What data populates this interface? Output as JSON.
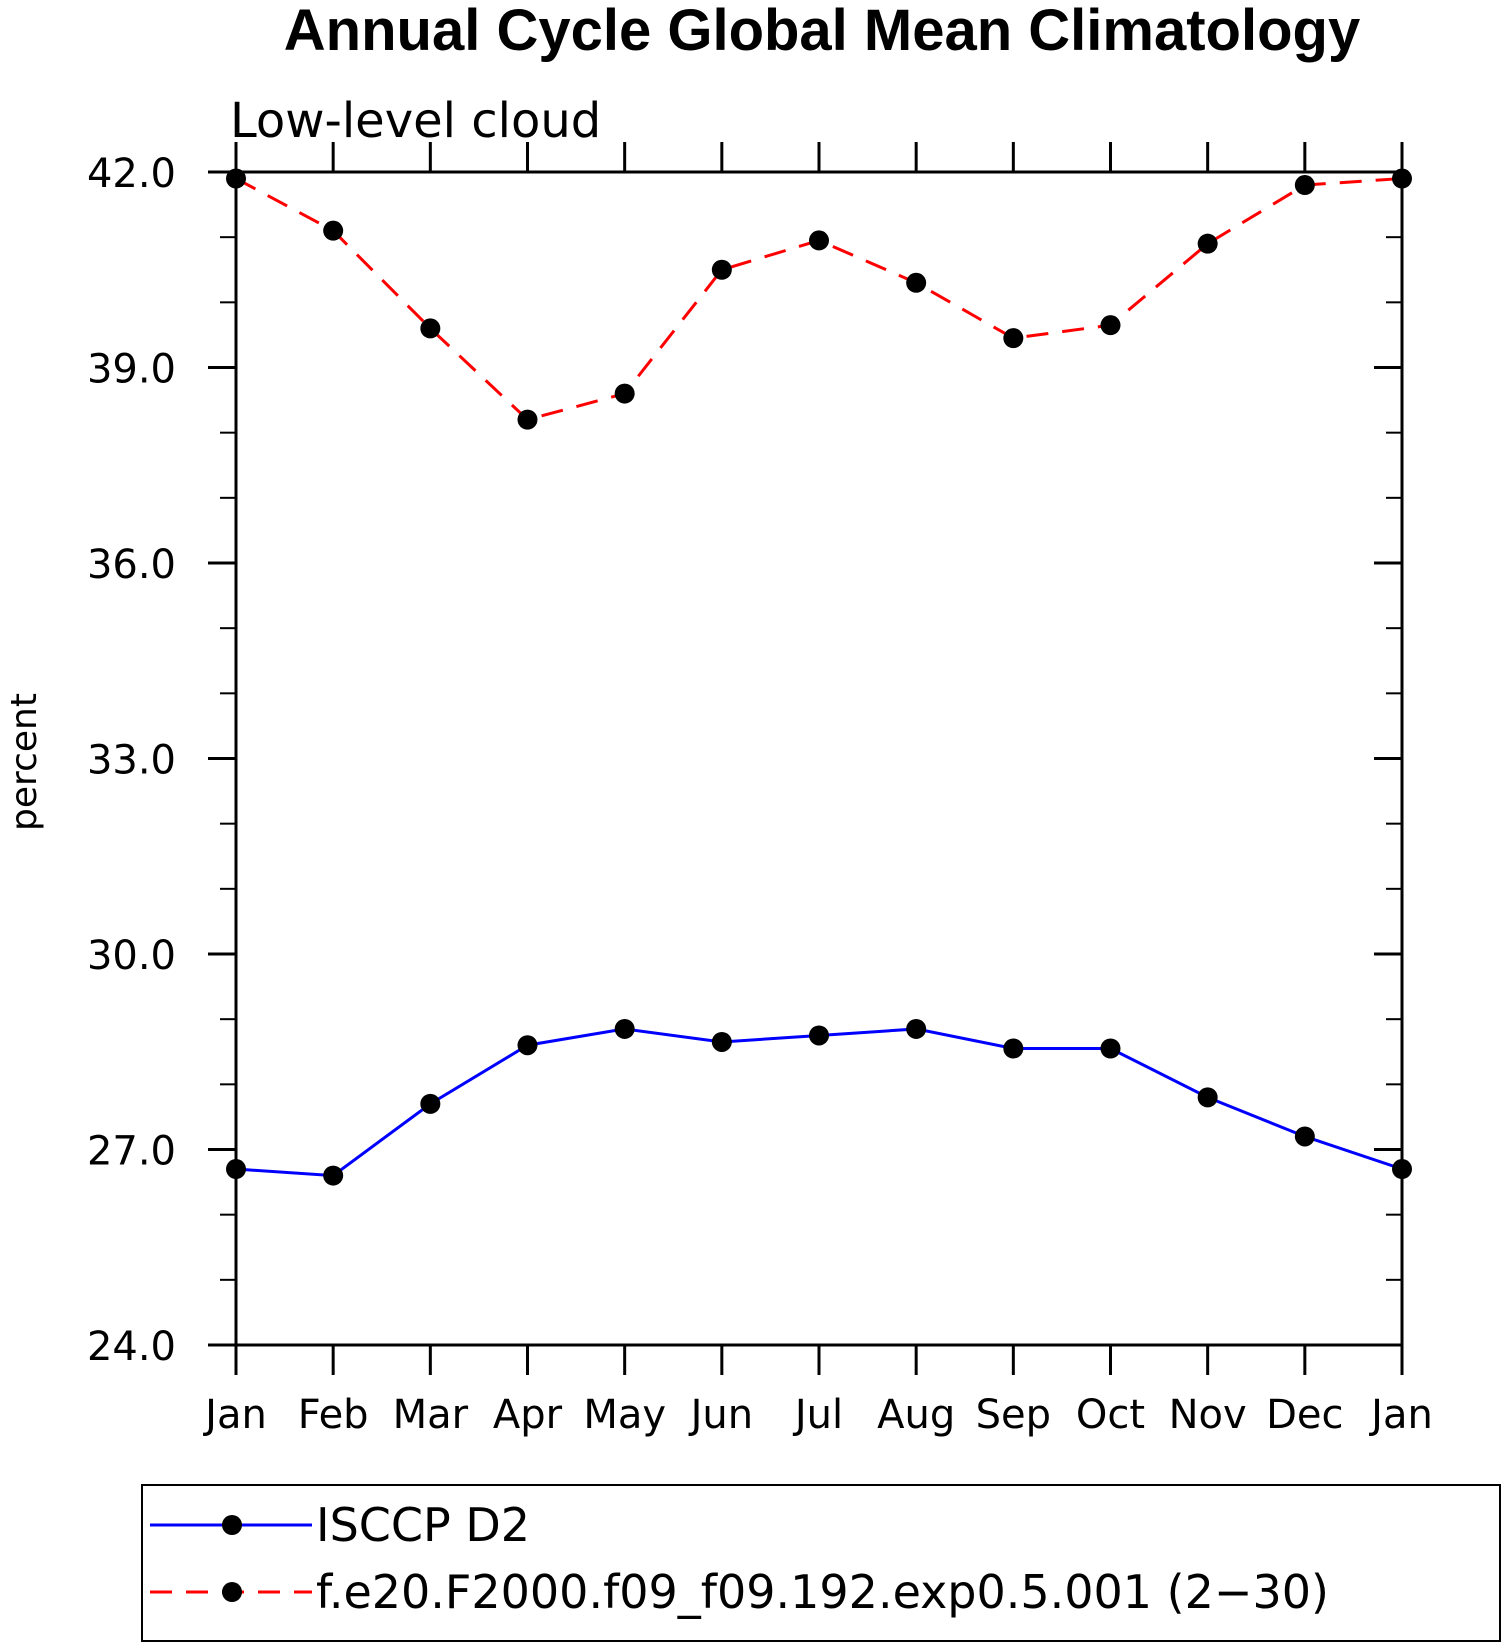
{
  "chart_data": {
    "type": "line",
    "title": "Annual Cycle Global Mean Climatology",
    "subtitle": "Low-level cloud",
    "xlabel": "",
    "ylabel": "percent",
    "categories": [
      "Jan",
      "Feb",
      "Mar",
      "Apr",
      "May",
      "Jun",
      "Jul",
      "Aug",
      "Sep",
      "Oct",
      "Nov",
      "Dec",
      "Jan"
    ],
    "ylim": [
      24.0,
      42.0
    ],
    "yticks": [
      "24.0",
      "27.0",
      "30.0",
      "33.0",
      "36.0",
      "39.0",
      "42.0"
    ],
    "grid": false,
    "legend_position": "bottom",
    "series": [
      {
        "name": "ISCCP D2",
        "color": "#0000ff",
        "dash": "solid",
        "marker": "filled-circle",
        "values": [
          26.7,
          26.6,
          27.7,
          28.6,
          28.85,
          28.65,
          28.75,
          28.85,
          28.55,
          28.55,
          27.8,
          27.2,
          26.7
        ]
      },
      {
        "name": "f.e20.F2000.f09_f09.192.exp0.5.001 (2−30)",
        "color": "#ff0000",
        "dash": "dashed",
        "marker": "filled-circle",
        "values": [
          41.9,
          41.1,
          39.6,
          38.2,
          38.6,
          40.5,
          40.95,
          40.3,
          39.45,
          39.65,
          40.9,
          41.8,
          41.9
        ]
      }
    ]
  }
}
